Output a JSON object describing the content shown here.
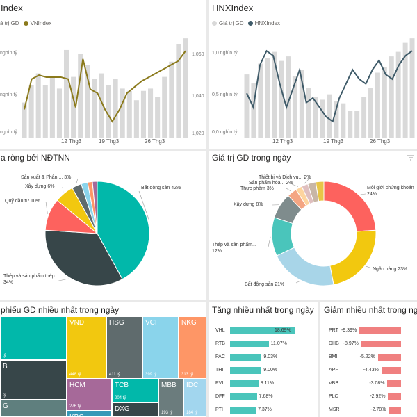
{
  "panels": {
    "vn": {
      "title": "Index",
      "legend": [
        "á trị GD",
        "VNIndex"
      ]
    },
    "hnx": {
      "title": "HNXIndex",
      "legend": [
        "Giá trị GD",
        "HNXIndex"
      ]
    },
    "netbuy": {
      "title": "a ròng bởi NĐTNN"
    },
    "sector": {
      "title": "Giá trị GD trong ngày"
    },
    "treemap": {
      "title": "phiếu GD nhiều nhất trong ngày"
    },
    "gainers": {
      "title": "Tăng nhiều nhất trong ngày"
    },
    "losers": {
      "title": "Giảm nhiều nhất trong ngày"
    }
  },
  "colors": {
    "gold": "#8b7a1c",
    "slate": "#3f5b69",
    "bar": "#d9d9d9",
    "teal": "#01b8aa",
    "dark": "#374649",
    "red": "#fd625e",
    "yellow": "#f2c80f",
    "grey": "#5f6b6d",
    "cyan": "#8ad4eb",
    "orange": "#fe9666",
    "purple": "#a66999",
    "blue": "#3599b8",
    "pink": "#dfbfbf",
    "green": "#4ac5bb",
    "navy": "#5f6b6d",
    "light": "#8ad4eb"
  },
  "chart_data": [
    {
      "type": "line",
      "title": "Index",
      "series": [
        {
          "name": "VNIndex"
        },
        {
          "name": "á trị GD"
        }
      ],
      "x_ticks": [
        "12 Thg3",
        "19 Thg3",
        "26 Thg3"
      ],
      "y_left_ticks": [
        "nghìn tỷ",
        "nghìn tỷ",
        "nghìn tỷ"
      ],
      "y_right_ticks": [
        "1,060",
        "1,040",
        "1,020"
      ],
      "ylim_right": [
        1020,
        1068
      ],
      "line_values": [
        1030,
        1045,
        1047,
        1046,
        1046,
        1046,
        1045,
        1031,
        1055,
        1040,
        1038,
        1030,
        1024,
        1030,
        1038,
        1041,
        1044,
        1046,
        1048,
        1050,
        1052,
        1054,
        1059
      ],
      "bar_values": [
        0.3,
        0.45,
        0.55,
        0.45,
        0.52,
        0.42,
        0.75,
        0.52,
        0.72,
        0.62,
        0.5,
        0.55,
        0.45,
        0.5,
        0.42,
        0.4,
        0.32,
        0.4,
        0.42,
        0.35,
        0.52,
        0.65,
        0.8,
        0.85
      ]
    },
    {
      "type": "line",
      "title": "HNXIndex",
      "series": [
        {
          "name": "HNXIndex"
        },
        {
          "name": "Giá trị GD"
        }
      ],
      "x_ticks": [
        "12 Thg3",
        "19 Thg3",
        "26 Thg3"
      ],
      "y_left_ticks": [
        "1,0 nghìn tỷ",
        "0,5 nghìn tỷ",
        "0,0 nghìn tỷ"
      ],
      "line_values": [
        0.6,
        0.45,
        0.9,
        1.05,
        1.0,
        0.7,
        0.45,
        0.65,
        0.85,
        0.5,
        0.55,
        0.45,
        0.35,
        0.3,
        0.55,
        0.7,
        0.85,
        0.75,
        0.7,
        0.85,
        0.95,
        0.8,
        0.75,
        0.9,
        1.0,
        1.05
      ],
      "bar_values": [
        0.7,
        0.6,
        0.82,
        0.88,
        0.95,
        0.85,
        0.9,
        0.68,
        0.75,
        0.55,
        0.45,
        0.42,
        0.48,
        0.4,
        0.38,
        0.3,
        0.3,
        0.45,
        0.55,
        0.72,
        0.78,
        0.9,
        0.95,
        1.05,
        1.1
      ]
    },
    {
      "type": "pie",
      "title": "a ròng bởi NĐTNN",
      "slices": [
        {
          "label": "Bất động sản 42%",
          "value": 42
        },
        {
          "label": "Thép và sản phẩm thép 34%",
          "value": 34
        },
        {
          "label": "Quỹ đầu tư 10%",
          "value": 10
        },
        {
          "label": "Xây dựng 6%",
          "value": 6
        },
        {
          "label": "Sản xuất & Phân ... 3%",
          "value": 3
        },
        {
          "label": "",
          "value": 2
        },
        {
          "label": "",
          "value": 1.5
        },
        {
          "label": "",
          "value": 1.5
        }
      ]
    },
    {
      "type": "pie",
      "title": "Giá trị GD trong ngày",
      "slices": [
        {
          "label": "Môi giới chứng khoán 24%",
          "value": 24
        },
        {
          "label": "Ngân hàng 23%",
          "value": 23
        },
        {
          "label": "Bất động sản 21%",
          "value": 21
        },
        {
          "label": "Thép và sản phẩm... 12%",
          "value": 12
        },
        {
          "label": "Xây dựng 8%",
          "value": 8
        },
        {
          "label": "Thực phẩm 3%",
          "value": 3
        },
        {
          "label": "Sản phẩm hóa... 2%",
          "value": 2
        },
        {
          "label": "Thiết bị và Dịch vụ... 2%",
          "value": 2
        },
        {
          "label": "",
          "value": 2.5
        },
        {
          "label": "",
          "value": 2.5
        }
      ]
    },
    {
      "type": "treemap",
      "title": "phiếu GD nhiều nhất trong ngày",
      "cells": [
        {
          "name": "",
          "value": "tỷ"
        },
        {
          "name": "B",
          "value": "tỷ"
        },
        {
          "name": "G",
          "value": ""
        },
        {
          "name": "VND",
          "value": "448 tỷ"
        },
        {
          "name": "HSG",
          "value": "411 tỷ"
        },
        {
          "name": "VCI",
          "value": "399 tỷ"
        },
        {
          "name": "NKG",
          "value": "313 tỷ"
        },
        {
          "name": "HCM",
          "value": "276 tỷ"
        },
        {
          "name": "TCB",
          "value": "204 tỷ"
        },
        {
          "name": "MBB",
          "value": "193 tỷ"
        },
        {
          "name": "IDC",
          "value": "184 tỷ"
        },
        {
          "name": "DXG",
          "value": ""
        },
        {
          "name": "KBC",
          "value": ""
        }
      ]
    },
    {
      "type": "bar",
      "title": "Tăng nhiều nhất trong ngày",
      "categories": [
        "VHL",
        "RTB",
        "PAC",
        "THI",
        "PVI",
        "DFF",
        "PTI"
      ],
      "values": [
        18.69,
        11.07,
        9.03,
        9.0,
        8.11,
        7.68,
        7.37
      ],
      "labels": [
        "18.69%",
        "11.07%",
        "9.03%",
        "9.00%",
        "8.11%",
        "7.68%",
        "7.37%"
      ]
    },
    {
      "type": "bar",
      "title": "Giảm nhiều nhất trong ngày",
      "categories": [
        "PRT",
        "DHB",
        "BMI",
        "APF",
        "VBB",
        "PLC",
        "MSR"
      ],
      "values": [
        -9.39,
        -8.97,
        -5.22,
        -4.43,
        -3.08,
        -2.92,
        -2.78
      ],
      "labels": [
        "-9.39%",
        "-8.97%",
        "-5.22%",
        "-4.43%",
        "-3.08%",
        "-2.92%",
        "-2.78%"
      ]
    }
  ]
}
